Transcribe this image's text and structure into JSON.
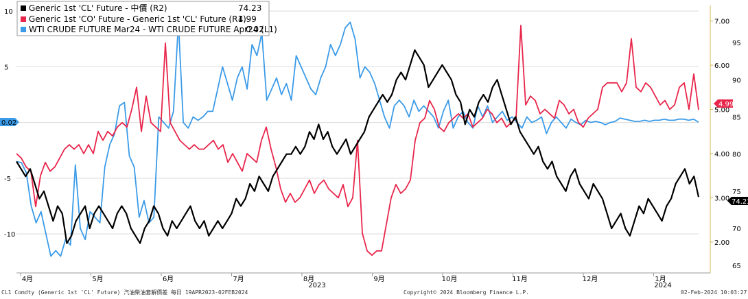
{
  "legend": [
    {
      "label": "Generic 1st 'CL' Future - 中價 (R2)",
      "value": "74.23",
      "color": "#000000"
    },
    {
      "label": "Generic 1st 'CO' Future - Generic 1st 'CL' Future (R1)",
      "value": "4.99",
      "color": "#e8254a"
    },
    {
      "label": "WTI CRUDE FUTURE Mar24 - WTI CRUDE FUTURE Apr24 (L1)",
      "value": "0.02",
      "color": "#3b9be8"
    }
  ],
  "footer": {
    "left": "CL1 Comdty (Generic 1st 'CL' Future) 汽油柴油套解價差  每日 19APR2023-02FEB2024",
    "center": "Copyright© 2024 Bloomberg Finance L.P.",
    "right": "02-Feb-2024 10:03:27"
  },
  "tags": {
    "left": "0.02",
    "r1": "4.99",
    "r2": "74.23"
  },
  "chart_data": {
    "type": "line",
    "x_labels": [
      "4月",
      "5月",
      "6月",
      "7月",
      "8月",
      "9月",
      "10月",
      "11月",
      "12月",
      "1月"
    ],
    "year_labels": [
      "2023",
      "2024"
    ],
    "left_axis": {
      "ticks": [
        10,
        5,
        0,
        -5,
        -10
      ],
      "range": [
        -13.5,
        10.5
      ]
    },
    "r1_axis": {
      "ticks": [
        "7.00",
        "6.00",
        "5.00",
        "4.00",
        "3.00",
        "2.00"
      ],
      "range": [
        1.3,
        7.35
      ]
    },
    "r2_axis": {
      "ticks": [
        95,
        90,
        85,
        80,
        75,
        70,
        65
      ],
      "range": [
        64,
        100
      ]
    },
    "series": [
      {
        "name": "Generic 1st 'CL' Future - 中價 (R2)",
        "axis": "r2",
        "color": "#000000",
        "values": [
          79,
          78,
          77,
          78,
          76,
          74,
          75,
          73,
          71,
          73,
          72,
          68,
          69,
          71,
          72,
          73,
          70,
          72,
          73,
          72,
          71,
          70,
          72,
          73,
          72,
          70,
          69,
          68,
          70,
          71,
          73,
          72,
          70,
          69,
          71,
          70,
          71,
          72,
          73,
          71,
          70,
          71,
          69,
          70,
          71,
          70,
          71,
          72,
          74,
          73,
          74,
          76,
          75,
          77,
          76,
          75,
          77,
          78,
          79,
          80,
          80,
          81,
          80,
          81,
          83,
          82,
          84,
          82,
          83,
          81,
          80,
          81,
          82,
          80,
          81,
          82,
          83,
          85,
          86,
          87,
          88,
          87,
          88,
          90,
          91,
          90,
          92,
          94,
          93,
          92,
          89,
          90,
          91,
          92,
          91,
          90,
          88,
          87,
          84,
          86,
          85,
          87,
          88,
          87,
          89,
          90,
          88,
          86,
          84,
          85,
          83,
          82,
          81,
          80,
          81,
          79,
          78,
          79,
          77,
          76,
          75,
          77,
          78,
          76,
          75,
          74,
          76,
          75,
          74,
          72,
          70,
          71,
          72,
          70,
          69,
          71,
          73,
          72,
          74,
          73,
          72,
          71,
          73,
          74,
          76,
          77,
          78,
          76,
          77,
          74.23
        ]
      },
      {
        "name": "Generic 1st 'CO' Future - Generic 1st 'CL' Future (R1)",
        "axis": "r1",
        "color": "#e8254a",
        "values": [
          4.0,
          3.9,
          3.7,
          3.6,
          2.8,
          3.5,
          3.8,
          3.6,
          3.7,
          3.9,
          4.1,
          4.2,
          4.1,
          4.2,
          4.0,
          4.2,
          4.0,
          4.5,
          4.3,
          4.5,
          4.4,
          4.6,
          4.7,
          4.6,
          5.0,
          5.5,
          4.5,
          5.3,
          4.7,
          4.6,
          4.5,
          6.5,
          4.7,
          4.5,
          4.3,
          4.2,
          4.1,
          4.2,
          4.1,
          4.1,
          4.2,
          4.3,
          4.1,
          4.2,
          3.8,
          4.0,
          3.8,
          3.6,
          4.0,
          3.9,
          3.8,
          4.3,
          4.6,
          4.1,
          3.7,
          3.2,
          2.9,
          3.1,
          2.9,
          3.0,
          3.2,
          3.4,
          3.1,
          3.3,
          3.4,
          3.2,
          3.1,
          3.0,
          3.3,
          2.8,
          3.0,
          4.3,
          2.2,
          1.8,
          1.7,
          1.8,
          1.8,
          2.4,
          3.0,
          3.3,
          3.1,
          3.2,
          3.4,
          4.3,
          4.7,
          4.8,
          5.2,
          5.0,
          4.6,
          4.5,
          4.7,
          4.8,
          4.9,
          4.8,
          4.9,
          4.6,
          4.7,
          4.8,
          5.0,
          4.9,
          4.7,
          4.8,
          4.6,
          4.7,
          4.8,
          6.9,
          5.1,
          5.3,
          5.2,
          4.9,
          5.0,
          4.9,
          4.8,
          5.2,
          5.1,
          4.9,
          5.0,
          4.7,
          4.6,
          4.8,
          4.9,
          5.0,
          5.5,
          5.6,
          5.6,
          5.6,
          5.4,
          5.6,
          6.6,
          5.5,
          5.4,
          5.6,
          5.5,
          5.3,
          5.1,
          5.2,
          5.0,
          5.1,
          5.5,
          5.6,
          5.0,
          5.8,
          4.99
        ]
      },
      {
        "name": "WTI CRUDE FUTURE Mar24 - WTI CRUDE FUTURE Apr24 (L1)",
        "axis": "left",
        "color": "#3b9be8",
        "values": [
          -3.5,
          -3.6,
          -4.5,
          -7.5,
          -9.0,
          -8.0,
          -10.0,
          -12.0,
          -11.5,
          -12.0,
          -10.5,
          -11.0,
          -3.8,
          -9.5,
          -10.5,
          -8.0,
          -8.5,
          -9.0,
          -4.0,
          -2.0,
          -1.0,
          1.5,
          1.8,
          -3.0,
          -4.0,
          -8.5,
          -7.0,
          -9.0,
          -8.5,
          0.5,
          0.0,
          -0.5,
          1.0,
          9.0,
          0.0,
          -0.5,
          0.5,
          0.2,
          0.5,
          1.0,
          1.0,
          3.0,
          5.0,
          3.5,
          2.0,
          4.0,
          5.0,
          3.0,
          7.0,
          6.0,
          8.0,
          2.0,
          3.0,
          4.0,
          2.5,
          3.5,
          2.0,
          6.0,
          5.0,
          4.0,
          3.0,
          2.5,
          4.0,
          5.0,
          7.0,
          6.0,
          7.0,
          8.5,
          9.0,
          7.5,
          4.0,
          5.0,
          4.5,
          3.5,
          2.0,
          0.5,
          -0.5,
          1.5,
          2.0,
          1.5,
          0.5,
          2.0,
          1.0,
          1.5,
          1.0,
          0.5,
          -0.5,
          1.0,
          2.0,
          -0.5,
          0.5,
          1.0,
          0.0,
          -0.5,
          1.5,
          0.5,
          1.5,
          0.0,
          0.5,
          1.0,
          0.2,
          0.5,
          0.0,
          -0.5,
          0.5,
          0.0,
          0.2,
          0.5,
          -1.0,
          0.0,
          0.5,
          0.0,
          -0.5,
          0.3,
          0.0,
          -0.2,
          0.2,
          0.0,
          0.1,
          0.0,
          -0.2,
          0.0,
          0.1,
          0.4,
          0.3,
          0.2,
          0.1,
          0.1,
          0.2,
          0.1,
          0.2,
          0.2,
          0.3,
          0.2,
          0.2,
          0.3,
          0.3,
          0.2,
          0.3,
          0.02
        ]
      }
    ]
  }
}
